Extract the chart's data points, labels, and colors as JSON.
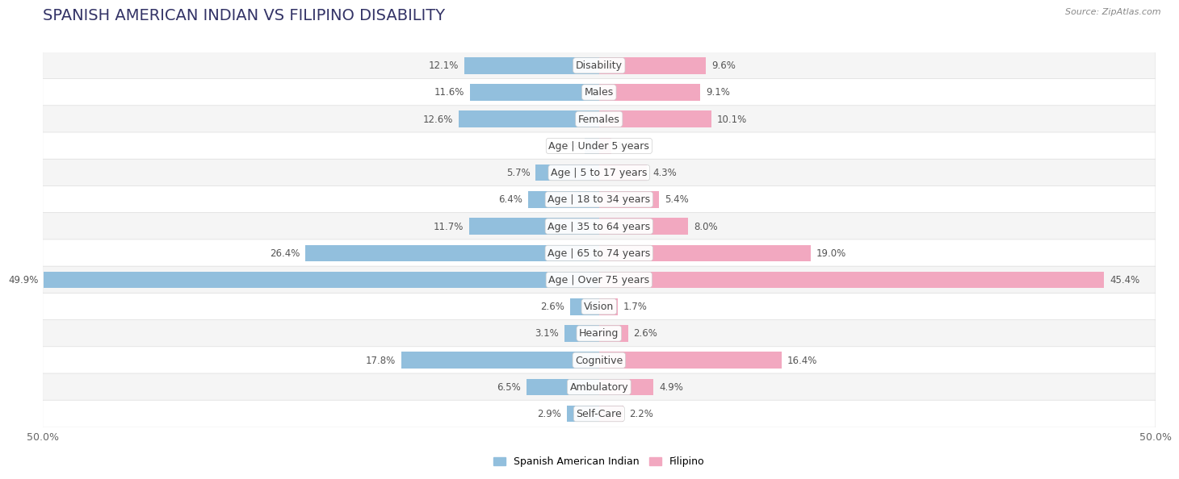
{
  "title": "SPANISH AMERICAN INDIAN VS FILIPINO DISABILITY",
  "source": "Source: ZipAtlas.com",
  "categories": [
    "Disability",
    "Males",
    "Females",
    "Age | Under 5 years",
    "Age | 5 to 17 years",
    "Age | 18 to 34 years",
    "Age | 35 to 64 years",
    "Age | 65 to 74 years",
    "Age | Over 75 years",
    "Vision",
    "Hearing",
    "Cognitive",
    "Ambulatory",
    "Self-Care"
  ],
  "left_values": [
    12.1,
    11.6,
    12.6,
    1.3,
    5.7,
    6.4,
    11.7,
    26.4,
    49.9,
    2.6,
    3.1,
    17.8,
    6.5,
    2.9
  ],
  "right_values": [
    9.6,
    9.1,
    10.1,
    1.1,
    4.3,
    5.4,
    8.0,
    19.0,
    45.4,
    1.7,
    2.6,
    16.4,
    4.9,
    2.2
  ],
  "left_color": "#92bfdd",
  "right_color": "#f2a8c0",
  "left_label": "Spanish American Indian",
  "right_label": "Filipino",
  "axis_max": 50.0,
  "bg_color": "#ffffff",
  "row_bg_odd": "#f5f5f5",
  "row_bg_even": "#ffffff",
  "title_color": "#333366",
  "title_fontsize": 14,
  "label_fontsize": 9,
  "value_fontsize": 8.5,
  "axis_label_fontsize": 9,
  "source_fontsize": 8
}
